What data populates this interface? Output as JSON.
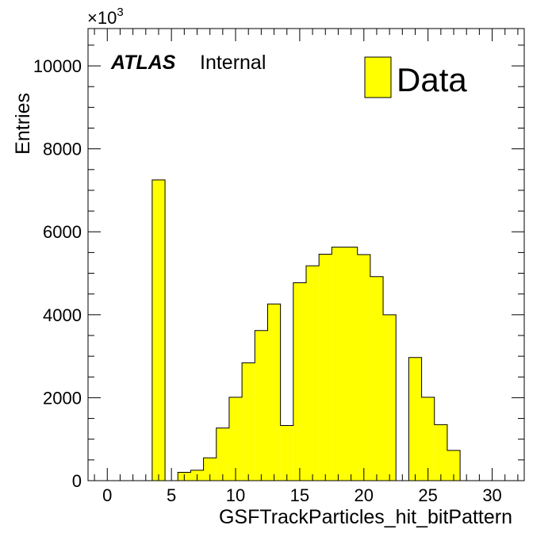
{
  "chart_data": {
    "type": "bar",
    "xlabel": "GSFTrackParticles_hit_bitPattern",
    "ylabel": "Entries",
    "y_multiplier_prefix": "×10",
    "y_multiplier_exponent": "3",
    "xlim": [
      -1.5,
      32.5
    ],
    "ylim": [
      0,
      10900
    ],
    "x_ticks": [
      0,
      5,
      10,
      15,
      20,
      25,
      30
    ],
    "y_ticks": [
      0,
      2000,
      4000,
      6000,
      8000,
      10000
    ],
    "x_tick_labels": [
      "0",
      "5",
      "10",
      "15",
      "20",
      "25",
      "30"
    ],
    "y_tick_labels": [
      "0",
      "2000",
      "4000",
      "6000",
      "8000",
      "10000"
    ],
    "bin_width": 1,
    "x": [
      4,
      6,
      7,
      8,
      9,
      10,
      11,
      12,
      13,
      14,
      15,
      16,
      17,
      18,
      19,
      20,
      21,
      22,
      24,
      25,
      26,
      27
    ],
    "values": [
      7250,
      200,
      250,
      550,
      1270,
      2010,
      2840,
      3620,
      4260,
      1330,
      4770,
      5180,
      5460,
      5630,
      5630,
      5450,
      4920,
      4000,
      2970,
      2010,
      1350,
      730
    ],
    "series": [
      {
        "name": "Data",
        "color": "#ffff00",
        "edge_color": "#000000"
      }
    ],
    "legend_placement": "top-right",
    "grid": false,
    "experiment_label": "ATLAS",
    "status_label": "Internal"
  }
}
